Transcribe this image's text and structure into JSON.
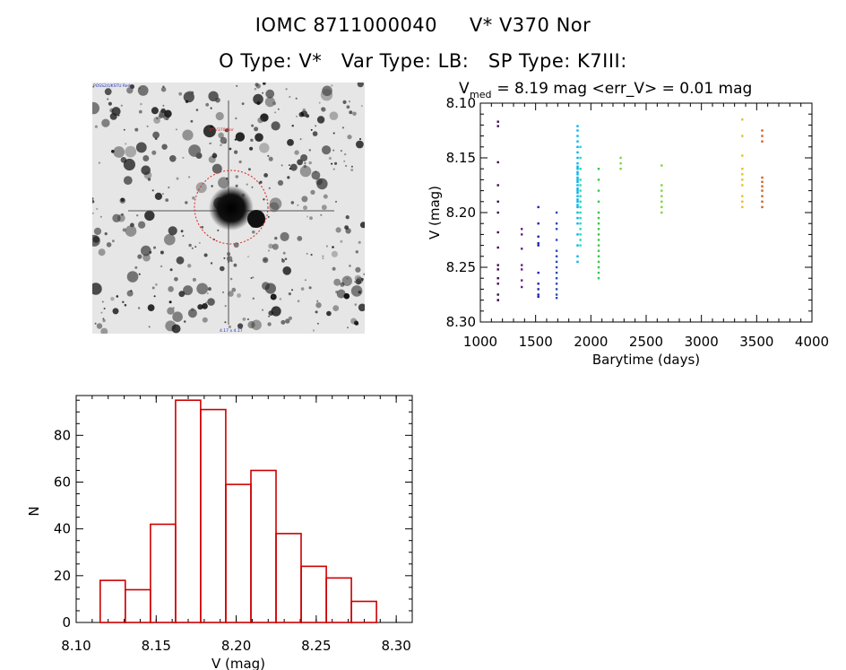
{
  "header": {
    "line1": "IOMC 8711000040     V* V370 Nor",
    "line2": "O Type: V*   Var Type: LB:   SP Type: K7III:"
  },
  "thumbnail": {
    "label_top_left": "POSS2/UKSTU Red",
    "label_red": "V* V370 Nor",
    "label_bottom_center": "4.17 x 4.17"
  },
  "colors": {
    "histogram": "#cc0000",
    "circle": "#dd2222",
    "series": [
      "#3b0a4a",
      "#6a1a8a",
      "#2020b0",
      "#2a4ac0",
      "#00b4e8",
      "#22d8b8",
      "#36c848",
      "#7ad838",
      "#e8c020",
      "#e8a020",
      "#d06020"
    ]
  },
  "chart_data": [
    {
      "type": "scatter",
      "title_prefix": "V",
      "title_sub": "med",
      "title_rest": " = 8.19 mag <err_V> = 0.01 mag",
      "xlabel": "Barytime (days)",
      "ylabel": "V (mag)",
      "xlim": [
        1000,
        4000
      ],
      "ylim": [
        8.3,
        8.1
      ],
      "y_reversed": true,
      "xticks": [
        1000,
        1500,
        2000,
        2500,
        3000,
        3500,
        4000
      ],
      "yticks": [
        "8.10",
        "8.15",
        "8.20",
        "8.25",
        "8.30"
      ],
      "groups": [
        {
          "x": 1160,
          "y": [
            8.117,
            8.121,
            8.154,
            8.175,
            8.19,
            8.2,
            8.218,
            8.232,
            8.248,
            8.252,
            8.26,
            8.265,
            8.275,
            8.28,
            8.28
          ]
        },
        {
          "x": 1375,
          "y": [
            8.215,
            8.22,
            8.233,
            8.248,
            8.252,
            8.262,
            8.268
          ]
        },
        {
          "x": 1525,
          "y": [
            8.195,
            8.21,
            8.222,
            8.228,
            8.23,
            8.255,
            8.265,
            8.27,
            8.275,
            8.277
          ]
        },
        {
          "x": 1690,
          "y": [
            8.2,
            8.21,
            8.215,
            8.225,
            8.235,
            8.24,
            8.245,
            8.25,
            8.255,
            8.26,
            8.265,
            8.27,
            8.275,
            8.278
          ]
        },
        {
          "x": 1880,
          "y": [
            8.121,
            8.125,
            8.13,
            8.135,
            8.14,
            8.145,
            8.15,
            8.155,
            8.158,
            8.16,
            8.163,
            8.165,
            8.168,
            8.17,
            8.172,
            8.175,
            8.178,
            8.18,
            8.182,
            8.185,
            8.188,
            8.19,
            8.193,
            8.195,
            8.2,
            8.205,
            8.21,
            8.22,
            8.23,
            8.24,
            8.245
          ]
        },
        {
          "x": 1905,
          "y": [
            8.14,
            8.15,
            8.16,
            8.17,
            8.175,
            8.18,
            8.185,
            8.19,
            8.195,
            8.2,
            8.205,
            8.21,
            8.215,
            8.22,
            8.225,
            8.23
          ]
        },
        {
          "x": 2070,
          "y": [
            8.16,
            8.17,
            8.18,
            8.19,
            8.2,
            8.205,
            8.21,
            8.215,
            8.22,
            8.225,
            8.23,
            8.235,
            8.24,
            8.245,
            8.25,
            8.255,
            8.26
          ]
        },
        {
          "x": 2270,
          "y": [
            8.15,
            8.155,
            8.16
          ]
        },
        {
          "x": 2640,
          "y": [
            8.157,
            8.175,
            8.18,
            8.185,
            8.19,
            8.195,
            8.2
          ]
        },
        {
          "x": 3370,
          "y": [
            8.115,
            8.13,
            8.148,
            8.16,
            8.165,
            8.17,
            8.175,
            8.185,
            8.19,
            8.195
          ]
        },
        {
          "x": 3550,
          "y": [
            8.125,
            8.13,
            8.135,
            8.168,
            8.172,
            8.176,
            8.18,
            8.185,
            8.19,
            8.195
          ]
        }
      ]
    },
    {
      "type": "bar",
      "xlabel": "V (mag)",
      "ylabel": "N",
      "xlim": [
        8.1,
        8.31
      ],
      "ylim": [
        0,
        97
      ],
      "xticks": [
        "8.10",
        "8.15",
        "8.20",
        "8.25",
        "8.30"
      ],
      "yticks": [
        "0",
        "20",
        "40",
        "60",
        "80"
      ],
      "bin_edges": [
        8.115,
        8.1307,
        8.1464,
        8.1621,
        8.1778,
        8.1935,
        8.2092,
        8.2249,
        8.2406,
        8.2563,
        8.272,
        8.2877
      ],
      "values": [
        18,
        14,
        42,
        95,
        91,
        59,
        65,
        38,
        24,
        19,
        9
      ]
    }
  ]
}
